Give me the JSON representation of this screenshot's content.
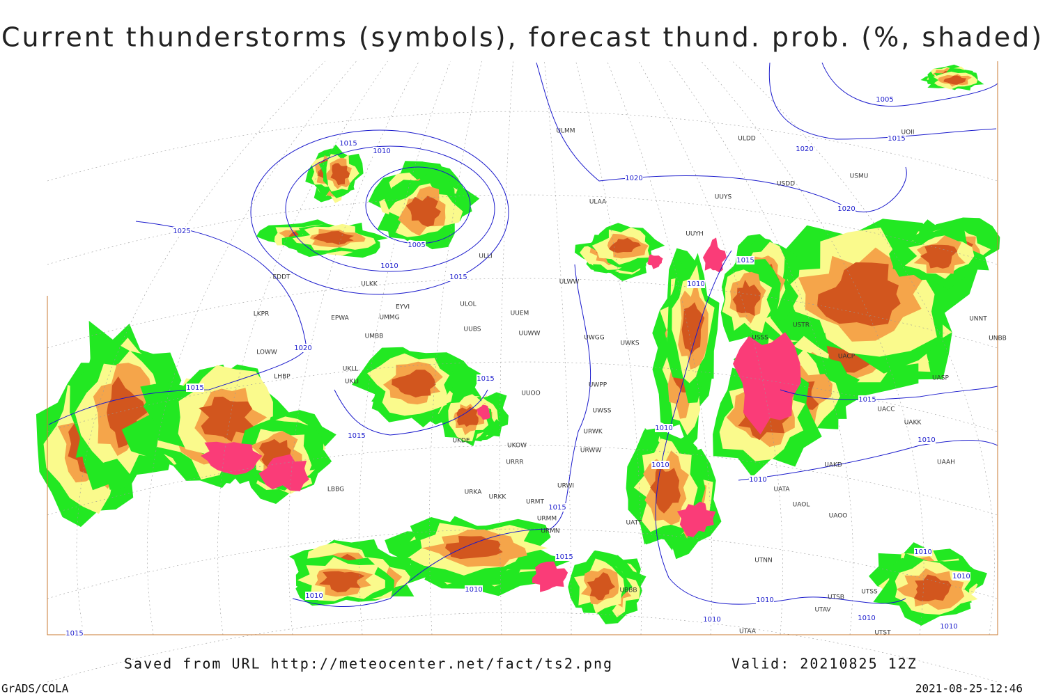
{
  "title": "Current thunderstorms (symbols), forecast thund. prob. (%, shaded)",
  "footer": {
    "source": "Saved from URL http://meteocenter.net/fact/ts2.png",
    "valid": "Valid: 20210825 12Z",
    "software": "GrADS/COLA",
    "timestamp": "2021-08-25-12:46"
  },
  "isobar_labels": [
    "1015",
    "1010",
    "1005",
    "1010",
    "1015",
    "1025",
    "1020",
    "1015",
    "1015",
    "1015",
    "1020",
    "1020",
    "1020",
    "1005",
    "1015",
    "1015",
    "1010",
    "1010",
    "1010",
    "1015",
    "1010",
    "1010",
    "1015",
    "1015",
    "1010",
    "1010",
    "1010",
    "1010",
    "1010",
    "1010",
    "1010",
    "1010",
    "1015"
  ],
  "station_labels": [
    "ULMM",
    "ULDD",
    "USDD",
    "USMU",
    "ULAA",
    "UUYS",
    "UUYH",
    "ULWW",
    "ULOL",
    "UUEM",
    "UUWW",
    "UWGG",
    "UWKS",
    "UUBS",
    "EYVI",
    "UMMG",
    "EPWA",
    "LKPR",
    "UMBB",
    "LOWW",
    "LHBP",
    "UKLL",
    "UKLI",
    "UUOO",
    "UWPP",
    "UWSS",
    "URWK",
    "URWW",
    "UKDE",
    "UKOW",
    "URRR",
    "URWI",
    "URKK",
    "URKA",
    "URMT",
    "URMM",
    "URMN",
    "LBBG",
    "UATA",
    "UAOL",
    "UAOO",
    "UATT",
    "UTNN",
    "UAKD",
    "UAAH",
    "UAKK",
    "UACC",
    "UASP",
    "UACP",
    "UNNT",
    "UNBB",
    "UBBB",
    "UTSB",
    "UTSS",
    "UTAV",
    "UTST",
    "UTAA",
    "EDDT",
    "ULLI",
    "ULKK",
    "USSS",
    "USTR",
    "UOII"
  ]
}
